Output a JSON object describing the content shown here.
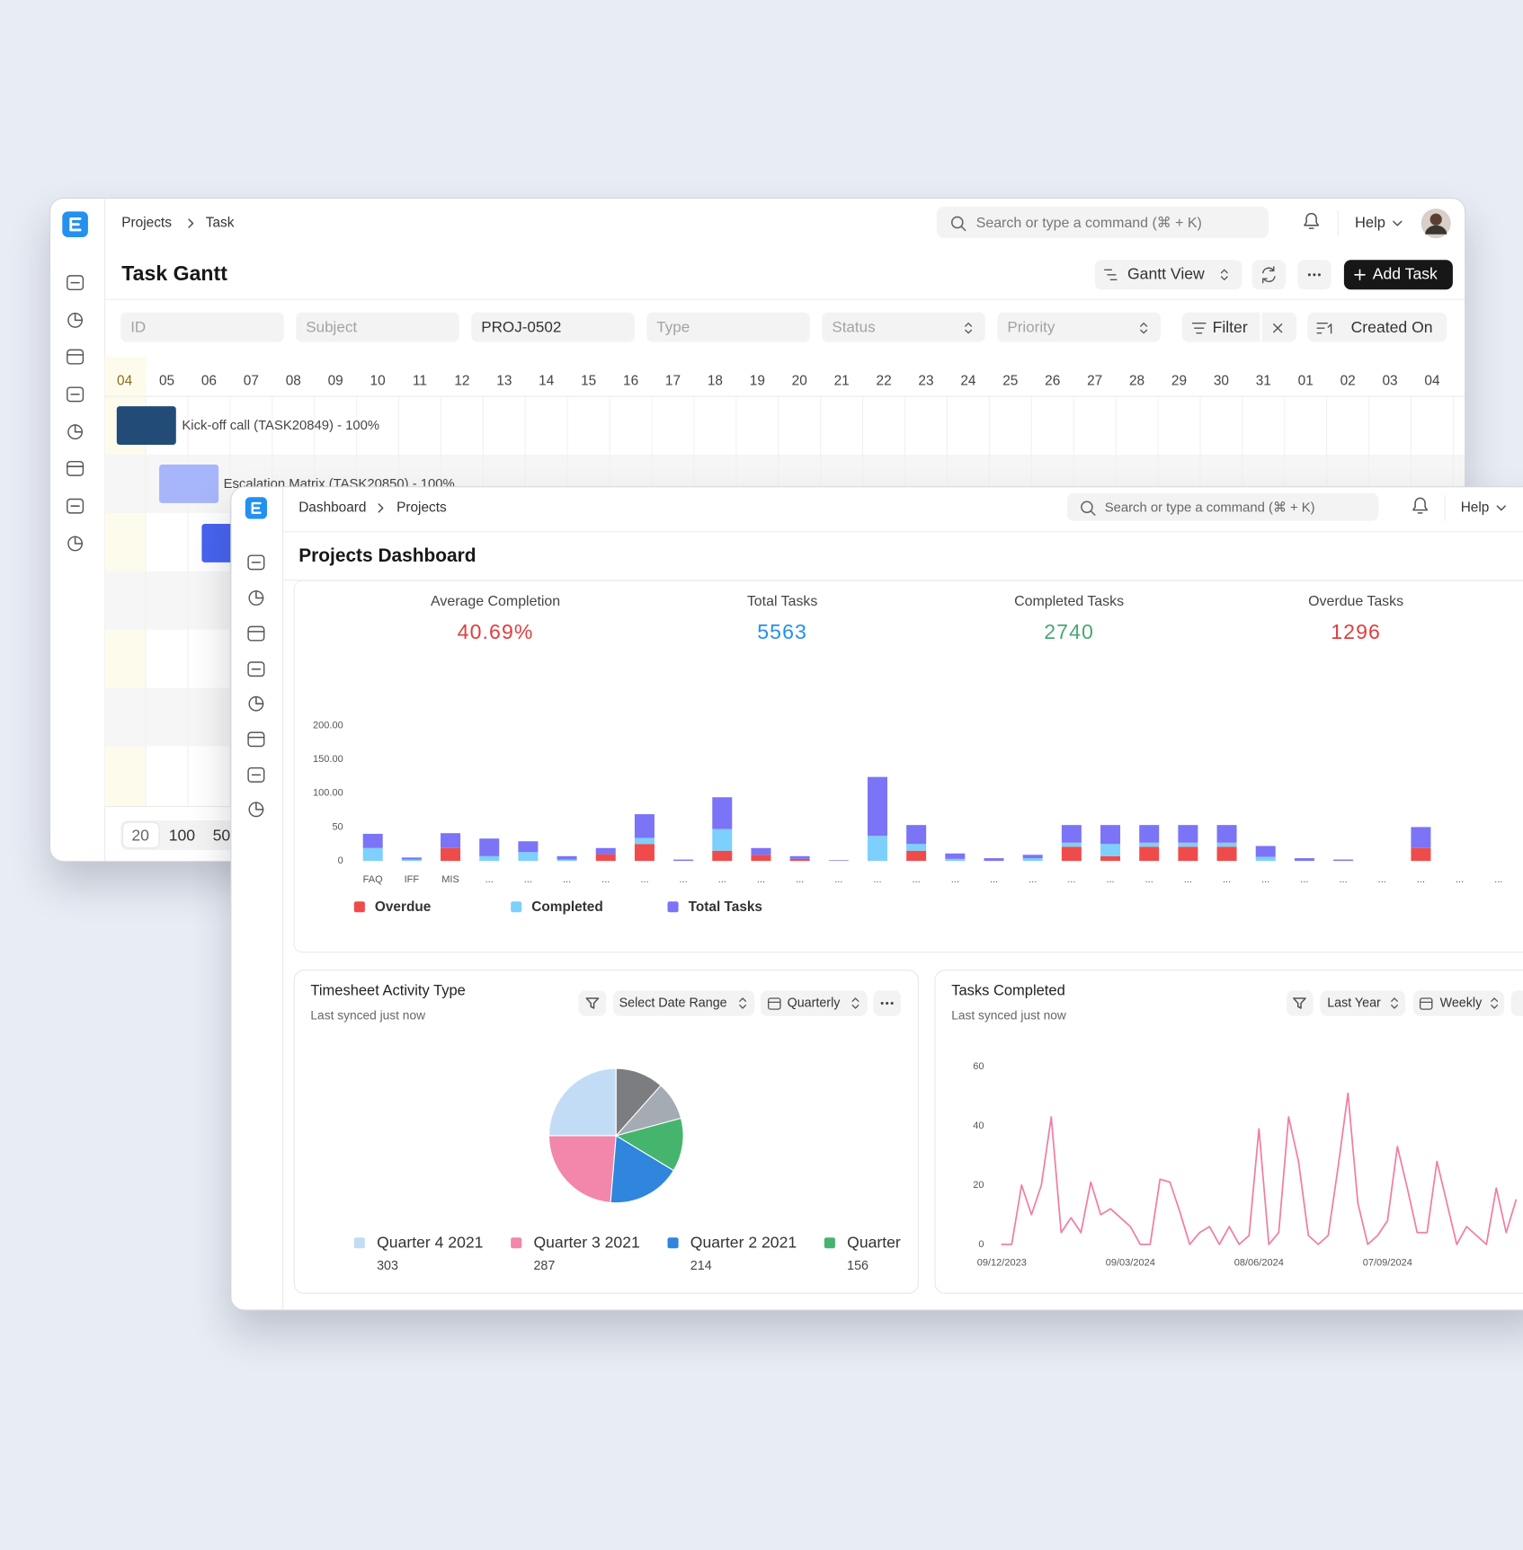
{
  "gantt": {
    "breadcrumb": [
      "Projects",
      "Task"
    ],
    "search": "Search or type a command (⌘ + K)",
    "help": "Help",
    "title": "Task Gantt",
    "view": "Gantt View",
    "add_task": "Add Task",
    "filters": [
      "ID",
      "Subject",
      "PROJ-0502",
      "Type",
      "Status",
      "Priority"
    ],
    "filter": "Filter",
    "sort": "Created On",
    "dates": [
      "04",
      "05",
      "06",
      "07",
      "08",
      "09",
      "10",
      "11",
      "12",
      "13",
      "14",
      "15",
      "16",
      "17",
      "18",
      "19",
      "20",
      "21",
      "22",
      "23",
      "24",
      "25",
      "26",
      "27",
      "28",
      "29",
      "30",
      "31",
      "01",
      "02",
      "03",
      "04"
    ],
    "tasks": [
      "Kick-off call (TASK20849) - 100%",
      "Escalation Matrix (TASK20850) - 100%"
    ],
    "page_sizes": [
      "20",
      "100",
      "50"
    ]
  },
  "dashboard": {
    "breadcrumb": [
      "Dashboard",
      "Projects"
    ],
    "search": "Search or type a command (⌘ + K)",
    "help": "Help",
    "title": "Projects Dashboard",
    "cards": [
      {
        "label": "Average Completion",
        "value": "40.69%",
        "color": "#e03e3e"
      },
      {
        "label": "Total Tasks",
        "value": "5563",
        "color": "#2490ef"
      },
      {
        "label": "Completed Tasks",
        "value": "2740",
        "color": "#48a872"
      },
      {
        "label": "Overdue Tasks",
        "value": "1296",
        "color": "#e03e3e"
      }
    ],
    "bar_chart": {
      "type": "bar",
      "stacked": true,
      "categories": [
        "FAQ",
        "IFF",
        "MIS",
        "...",
        "...",
        "...",
        "...",
        "...",
        "...",
        "...",
        "...",
        "...",
        "...",
        "...",
        "...",
        "...",
        "...",
        "...",
        "...",
        "...",
        "...",
        "...",
        "...",
        "...",
        "...",
        "...",
        "...",
        "...",
        "...",
        "..."
      ],
      "ylim": [
        0,
        200
      ],
      "yticks": [
        0,
        50,
        {
          "value": 100,
          "label": "100.00"
        },
        {
          "value": 150,
          "label": "150.00"
        },
        {
          "value": 200,
          "label": "200.00"
        }
      ],
      "series": [
        {
          "name": "Overdue",
          "color": "#f04b4b",
          "values": [
            0,
            0,
            19,
            0,
            0,
            0,
            10,
            25,
            0,
            15,
            9,
            3,
            0,
            0,
            15,
            0,
            0,
            0,
            21,
            7,
            21,
            21,
            21,
            0,
            0,
            0,
            0,
            19,
            0,
            0
          ]
        },
        {
          "name": "Completed",
          "color": "#7cd0fb",
          "values": [
            19,
            2,
            0,
            7,
            13,
            2,
            0,
            9,
            0,
            32,
            0,
            0,
            0,
            37,
            10,
            3,
            0,
            4,
            6,
            18,
            6,
            6,
            6,
            6,
            0,
            0,
            0,
            0,
            0,
            0
          ]
        },
        {
          "name": "Total Tasks",
          "color": "#7b74f6",
          "values": [
            21,
            3,
            22,
            26,
            16,
            5,
            9,
            35,
            2,
            47,
            10,
            4,
            1,
            87,
            28,
            8,
            4,
            5,
            26,
            28,
            26,
            26,
            26,
            16,
            4,
            2,
            0,
            31,
            0,
            0
          ]
        }
      ]
    },
    "pie_card": {
      "title": "Timesheet Activity Type",
      "synced": "Last synced just now",
      "controls": [
        "Select Date Range",
        "Quarterly"
      ],
      "chart": {
        "type": "pie",
        "categories": [
          "Quarter 4 2021",
          "Quarter 3 2021",
          "Quarter 2 2021",
          "Quarter",
          null,
          null
        ],
        "values": [
          303,
          287,
          214,
          156,
          112,
          140
        ],
        "colors": [
          "#c2dcf5",
          "#f286ab",
          "#2f86dc",
          "#45b56e",
          "#a5abb3",
          "#7c7d80"
        ]
      }
    },
    "line_card": {
      "title": "Tasks Completed",
      "synced": "Last synced just now",
      "controls": [
        "Last Year",
        "Weekly"
      ],
      "chart": {
        "type": "line",
        "categories": [
          "09/12/2023",
          null,
          null,
          null,
          null,
          null,
          null,
          null,
          null,
          null,
          null,
          null,
          null,
          "09/03/2024",
          null,
          null,
          null,
          null,
          null,
          null,
          null,
          null,
          null,
          null,
          null,
          null,
          "08/06/2024",
          null,
          null,
          null,
          null,
          null,
          null,
          null,
          null,
          null,
          null,
          null,
          null,
          "07/09/2024",
          null,
          null,
          null,
          null,
          null,
          null,
          null,
          null,
          null,
          null,
          null,
          null,
          null
        ],
        "values": [
          0,
          0,
          20,
          10,
          20,
          43,
          4,
          9,
          4,
          21,
          10,
          12,
          9,
          6,
          0,
          0,
          22,
          21,
          11,
          0,
          4,
          6,
          0,
          6,
          0,
          3,
          39,
          0,
          4,
          43,
          28,
          3,
          0,
          3,
          26,
          51,
          14,
          0,
          3,
          8,
          33,
          19,
          4,
          4,
          28,
          14,
          0,
          6,
          3,
          0,
          19,
          4,
          15
        ],
        "color": "#f07fa5",
        "ylim": [
          0,
          60
        ],
        "yticks": [
          0,
          20,
          40,
          60
        ]
      }
    }
  }
}
